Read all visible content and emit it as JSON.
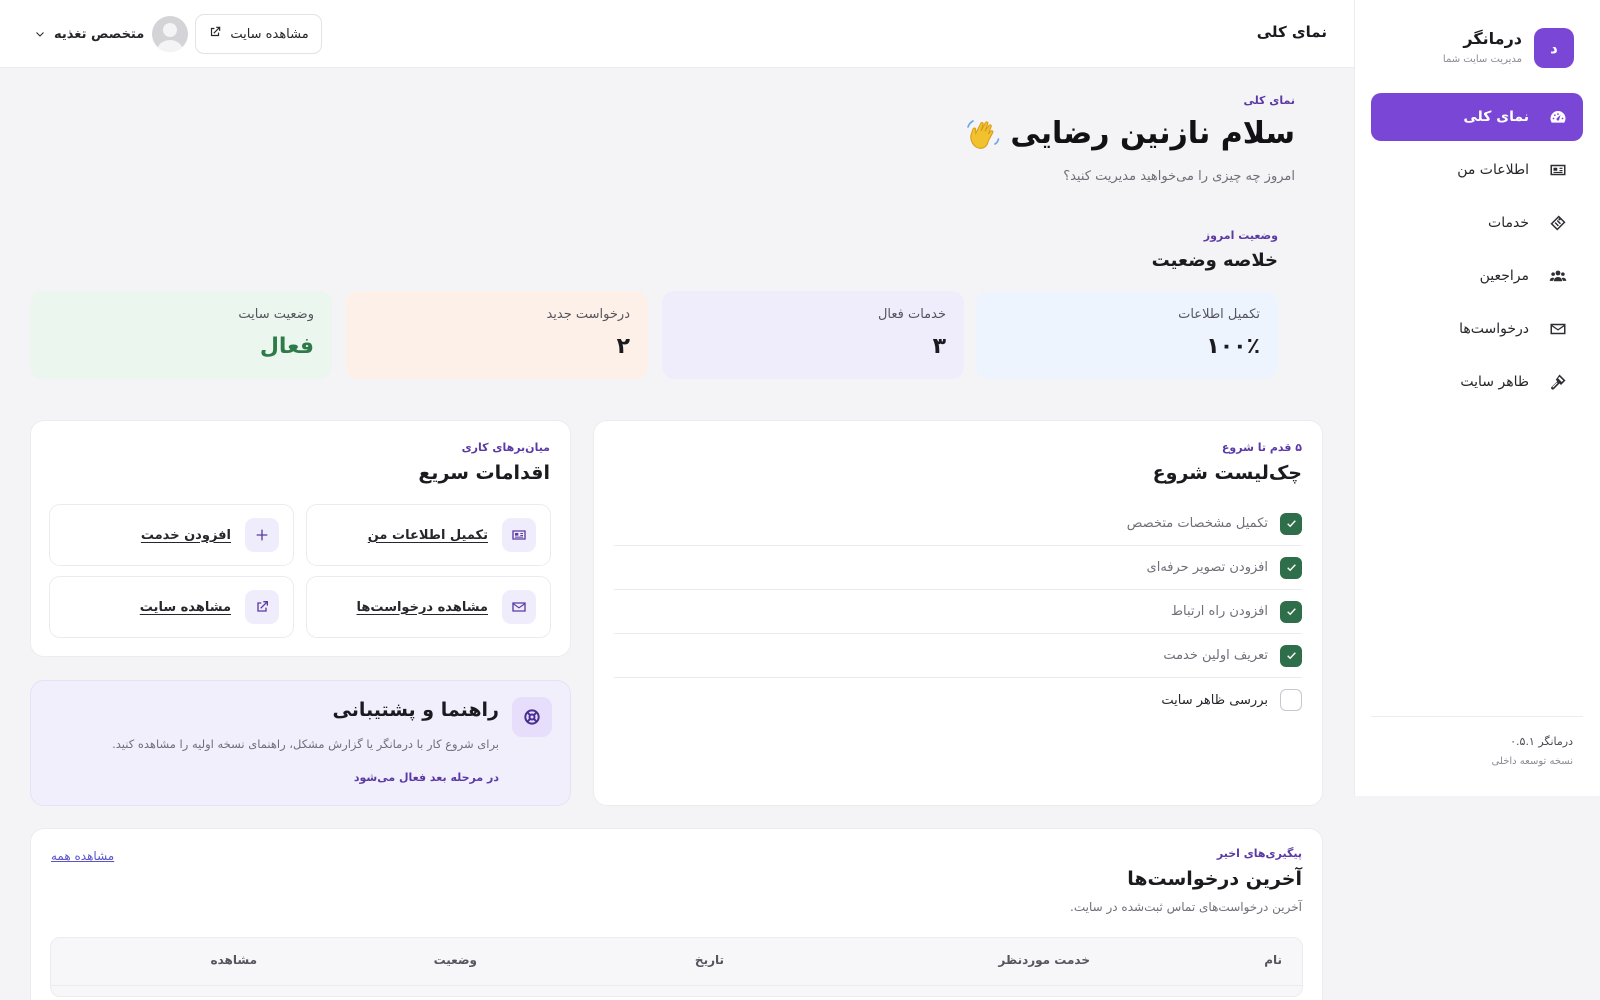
{
  "brand": {
    "logo_letter": "د",
    "name": "درمانگر",
    "subtitle": "مدیریت سایت شما",
    "accent_color": "#7a46d6"
  },
  "sidebar": {
    "items": [
      {
        "label": "نمای کلی",
        "icon": "dashboard-gauge-icon",
        "active": true
      },
      {
        "label": "اطلاعات من",
        "icon": "id-card-icon",
        "active": false
      },
      {
        "label": "خدمات",
        "icon": "tag-icon",
        "active": false
      },
      {
        "label": "مراجعین",
        "icon": "users-icon",
        "active": false
      },
      {
        "label": "درخواست‌ها",
        "icon": "envelope-icon",
        "active": false
      },
      {
        "label": "ظاهر سایت",
        "icon": "paint-brush-icon",
        "active": false
      }
    ],
    "footer": {
      "version": "درمانگر ۰.۵.۱",
      "note": "نسخه توسعه داخلی"
    }
  },
  "topbar": {
    "title": "نمای کلی",
    "view_site_label": "مشاهده سایت",
    "user_name": "متخصص تغذیه"
  },
  "greeting": {
    "eyebrow": "نمای کلی",
    "title": "سلام نازنین رضایی",
    "subtitle": "امروز چه چیزی را می‌خواهید مدیریت کنید؟"
  },
  "summary": {
    "eyebrow": "وضعیت امروز",
    "title": "خلاصه وضعیت",
    "stats": [
      {
        "label": "تکمیل اطلاعات",
        "value": "۱۰۰٪",
        "color": "#eef4fd"
      },
      {
        "label": "خدمات فعال",
        "value": "۳",
        "color": "#efedfb"
      },
      {
        "label": "درخواست جدید",
        "value": "۲",
        "color": "#fdf0e8"
      },
      {
        "label": "وضعیت سایت",
        "value": "فعال",
        "color": "#eaf6ee"
      }
    ]
  },
  "checklist": {
    "eyebrow": "۵ قدم تا شروع",
    "title": "چک‌لیست شروع",
    "items": [
      {
        "label": "تکمیل مشخصات متخصص",
        "done": true
      },
      {
        "label": "افزودن تصویر حرفه‌ای",
        "done": true
      },
      {
        "label": "افزودن راه ارتباط",
        "done": true
      },
      {
        "label": "تعریف اولین خدمت",
        "done": true
      },
      {
        "label": "بررسی ظاهر سایت",
        "done": false
      }
    ]
  },
  "quick_actions": {
    "eyebrow": "میان‌برهای کاری",
    "title": "اقدامات سریع",
    "items": [
      {
        "label": "تکمیل اطلاعات من",
        "icon": "id-card-icon"
      },
      {
        "label": "افزودن خدمت",
        "icon": "plus-icon"
      },
      {
        "label": "مشاهده درخواست‌ها",
        "icon": "envelope-icon"
      },
      {
        "label": "مشاهده سایت",
        "icon": "external-link-icon"
      }
    ]
  },
  "help": {
    "title": "راهنما و پشتیبانی",
    "text": "برای شروع کار با درمانگر یا گزارش مشکل، راهنمای نسخه اولیه را مشاهده کنید.",
    "note": "در مرحله بعد فعال می‌شود"
  },
  "requests": {
    "eyebrow": "پیگیری‌های اخیر",
    "title": "آخرین درخواست‌ها",
    "subtitle": "آخرین درخواست‌های تماس ثبت‌شده در سایت.",
    "see_all": "مشاهده همه",
    "columns": [
      "نام",
      "خدمت موردنظر",
      "تاریخ",
      "وضعیت",
      "مشاهده"
    ]
  }
}
